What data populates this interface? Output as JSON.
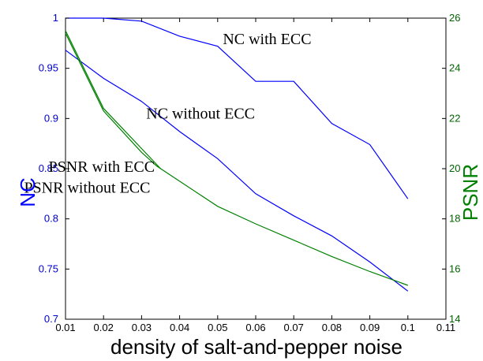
{
  "chart_data": {
    "type": "line",
    "xlabel": "density of salt-and-pepper noise",
    "ylabel_left": "NC",
    "ylabel_right": "PSNR",
    "xlim": [
      0.01,
      0.11
    ],
    "ylim_left": [
      0.7,
      1.0
    ],
    "ylim_right": [
      14,
      26
    ],
    "xticks": [
      "0.01",
      "0.02",
      "0.03",
      "0.04",
      "0.05",
      "0.06",
      "0.07",
      "0.08",
      "0.09",
      "0.1",
      "0.11"
    ],
    "yticks_left": [
      "0.7",
      "0.75",
      "0.8",
      "0.85",
      "0.9",
      "0.95",
      "1"
    ],
    "yticks_right": [
      "14",
      "16",
      "18",
      "20",
      "22",
      "24",
      "26"
    ],
    "grid": false,
    "colors": {
      "nc": "#0000ff",
      "psnr": "#008000"
    },
    "series": [
      {
        "name": "NC with ECC",
        "axis": "left",
        "x": [
          0.01,
          0.02,
          0.03,
          0.04,
          0.05,
          0.06,
          0.07,
          0.08,
          0.09,
          0.1
        ],
        "values": [
          1.0,
          1.0,
          0.997,
          0.982,
          0.972,
          0.937,
          0.937,
          0.895,
          0.874,
          0.82
        ]
      },
      {
        "name": "NC without ECC",
        "axis": "left",
        "x": [
          0.01,
          0.02,
          0.03,
          0.04,
          0.05,
          0.06,
          0.07,
          0.08,
          0.09,
          0.1
        ],
        "values": [
          0.968,
          0.94,
          0.917,
          0.887,
          0.86,
          0.825,
          0.803,
          0.783,
          0.757,
          0.728
        ]
      },
      {
        "name": "PSNR with ECC",
        "axis": "right",
        "x": [
          0.01,
          0.02,
          0.03,
          0.035
        ],
        "values": [
          25.5,
          22.4,
          20.8,
          20.0
        ]
      },
      {
        "name": "PSNR without ECC",
        "axis": "right",
        "x": [
          0.01,
          0.02,
          0.03,
          0.034,
          0.05,
          0.06,
          0.07,
          0.08,
          0.09,
          0.1
        ],
        "values": [
          25.4,
          22.3,
          20.65,
          20.1,
          18.5,
          17.8,
          17.15,
          16.5,
          15.9,
          15.35
        ]
      }
    ],
    "annotations": [
      {
        "text": "NC with ECC",
        "x": 0.063,
        "y": 0.974,
        "axis": "left"
      },
      {
        "text": "NC without ECC",
        "x": 0.0455,
        "y": 0.9,
        "axis": "left"
      },
      {
        "text": "PSNR with ECC",
        "x": 0.0195,
        "y": 0.847,
        "axis": "left"
      },
      {
        "text": "PSNR without ECC",
        "x": 0.0157,
        "y": 0.826,
        "axis": "left"
      }
    ]
  }
}
